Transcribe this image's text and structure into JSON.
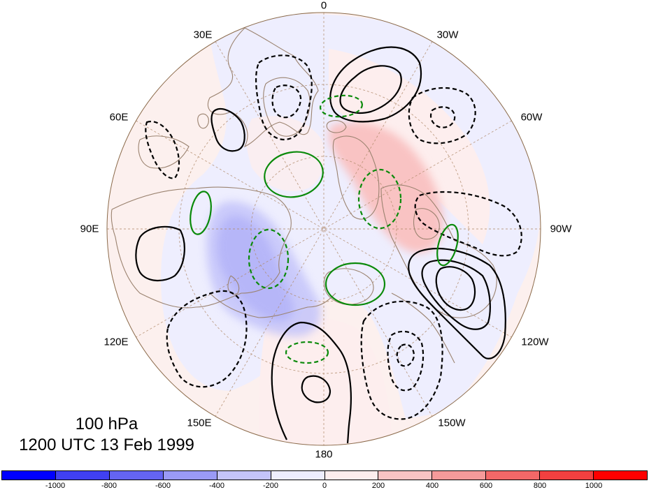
{
  "map": {
    "projection": "north-polar-stereographic",
    "longitude_labels": {
      "top": "0",
      "top_left": "30E",
      "top_right": "30W",
      "upper_left": "60E",
      "upper_right": "60W",
      "left": "90E",
      "right": "90W",
      "lower_left": "120E",
      "lower_right": "120W",
      "bottom_left": "150E",
      "bottom_right": "150W",
      "bottom": "180"
    },
    "fields": {
      "shading": "anomaly (color filled, -1000 to 1000)",
      "black_contours": "solid positive, dashed negative",
      "green_contours": "solid positive, dashed negative"
    },
    "colors": {
      "ocean_land_background": "#ffffff",
      "coastline": "#9b8370",
      "grid": "#b08a6a",
      "black_contour": "#000000",
      "green_contour": "#0a8a0a"
    }
  },
  "caption": {
    "level": "100 hPa",
    "time": "1200 UTC 13 Feb 1999"
  },
  "colorbar": {
    "colors": [
      "#0000ff",
      "#4040f2",
      "#6464f2",
      "#9a9af6",
      "#c4c4fa",
      "#eeeefe",
      "#fdeeee",
      "#f9c3c3",
      "#f59a9a",
      "#f36868",
      "#f24040",
      "#ff0000"
    ],
    "ticks": [
      "-1000",
      "-800",
      "-600",
      "-400",
      "-200",
      "0",
      "200",
      "400",
      "600",
      "800",
      "1000"
    ]
  }
}
